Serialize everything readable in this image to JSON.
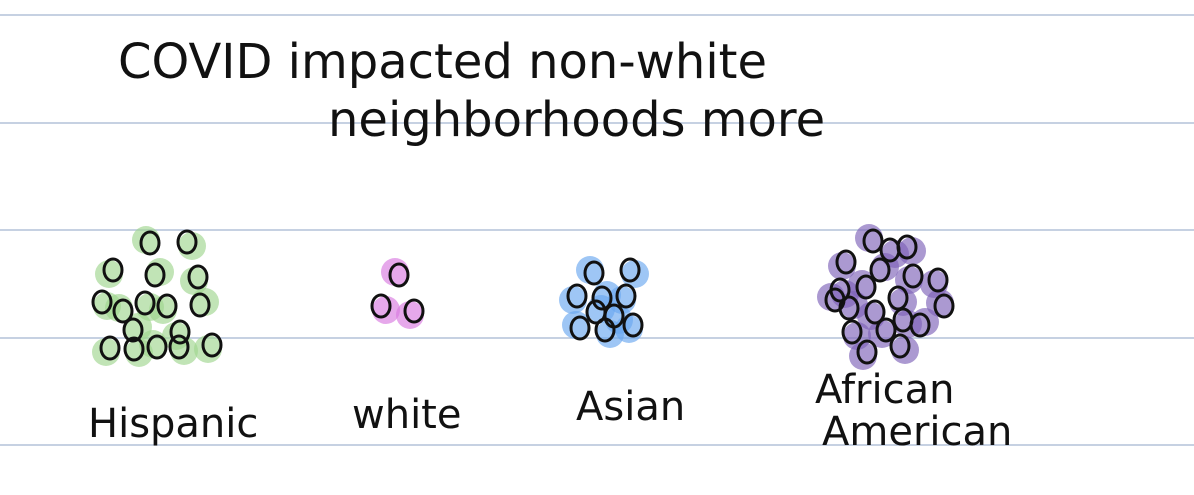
{
  "title": {
    "line1": "COVID impacted non-white",
    "line2": "neighborhoods more"
  },
  "groups": [
    {
      "label_line1": "Hispanic",
      "label_line2": "",
      "count": 17,
      "color": "#9fd58f"
    },
    {
      "label_line1": "white",
      "label_line2": "",
      "count": 3,
      "color": "#d97ae0"
    },
    {
      "label_line1": "Asian",
      "label_line2": "",
      "count": 10,
      "color": "#6aa7ef"
    },
    {
      "label_line1": "African",
      "label_line2": "American",
      "count": 20,
      "color": "#7e63b8"
    }
  ],
  "colors": {
    "ruled_line": "#b3c2d9",
    "ink": "#111111",
    "background": "#ffffff"
  }
}
